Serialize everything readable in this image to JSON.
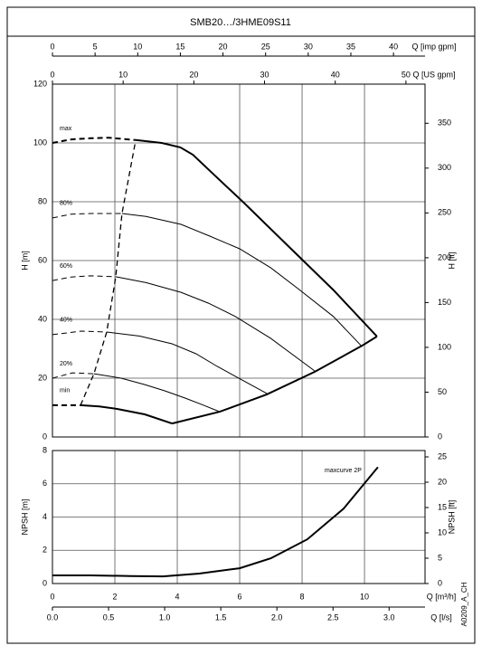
{
  "title": "SMB20…/3HME09S11",
  "code": "A0209_A_CH",
  "chart_data": [
    {
      "type": "line",
      "ylabel": "H [m]",
      "y2label": "H [ft]",
      "ylim": [
        0,
        120
      ],
      "yticks": [
        0,
        20,
        40,
        60,
        80,
        100,
        120
      ],
      "y2lim": [
        0,
        393.7
      ],
      "y2ticks": [
        0,
        50,
        100,
        150,
        200,
        250,
        300,
        350
      ],
      "xlim": [
        0,
        11.94
      ],
      "xticks": [
        0,
        2,
        4,
        6,
        8,
        10
      ],
      "top_axes": [
        {
          "label": "Q [imp gpm]",
          "xlim": [
            0,
            43.7
          ],
          "xticks": [
            0,
            5,
            10,
            15,
            20,
            25,
            30,
            35,
            40
          ]
        },
        {
          "label": "Q [US gpm]",
          "xlim": [
            0,
            52.7
          ],
          "xticks": [
            0,
            10,
            20,
            30,
            40,
            50
          ]
        }
      ],
      "grid": true,
      "color": "#000000",
      "series": [
        {
          "name": "max",
          "x": [
            0,
            0.6,
            1.22,
            1.8,
            2.67
          ],
          "values": [
            100,
            101.2,
            101.6,
            101.8,
            101
          ],
          "width": 2,
          "dash": true
        },
        {
          "x": [
            2.67,
            3.5,
            4.1,
            4.5,
            5.2,
            6.1,
            7.5,
            9,
            10.4
          ],
          "values": [
            101,
            100,
            98.5,
            96,
            89,
            80,
            65.5,
            50,
            34.2
          ],
          "width": 2,
          "dash": false
        },
        {
          "name": "80%",
          "x": [
            0,
            0.6,
            1.22,
            2.23
          ],
          "values": [
            74.5,
            75.8,
            76,
            76
          ],
          "width": 1,
          "dash": true
        },
        {
          "x": [
            2.23,
            3,
            4.12,
            5,
            6,
            7,
            7.9,
            9,
            9.9
          ],
          "values": [
            76,
            75,
            72.3,
            68.5,
            64,
            57.5,
            50.2,
            41,
            31
          ],
          "width": 1,
          "dash": false
        },
        {
          "name": "60%",
          "x": [
            0,
            0.6,
            1.22,
            2.03
          ],
          "values": [
            53.2,
            54.4,
            54.8,
            54.5
          ],
          "width": 1,
          "dash": true
        },
        {
          "x": [
            2.03,
            3,
            4.12,
            5,
            5.86,
            7,
            8.4
          ],
          "values": [
            54.5,
            52.5,
            49.2,
            45.5,
            41,
            33.5,
            22.5
          ],
          "width": 1,
          "dash": false
        },
        {
          "name": "40%",
          "x": [
            0,
            0.93,
            1.74
          ],
          "values": [
            34.8,
            36,
            35.7
          ],
          "width": 1,
          "dash": true
        },
        {
          "x": [
            1.74,
            2.8,
            3.83,
            4.6,
            5.28,
            6,
            6.87
          ],
          "values": [
            35.7,
            34.3,
            31.7,
            28.3,
            24,
            19.8,
            14.8
          ],
          "width": 1,
          "dash": false
        },
        {
          "name": "20%",
          "x": [
            0,
            0.64,
            1.33
          ],
          "values": [
            20,
            21.8,
            21.5
          ],
          "width": 1,
          "dash": true
        },
        {
          "x": [
            1.33,
            2.2,
            2.96,
            3.6,
            4.26,
            4.8,
            5.36
          ],
          "values": [
            21.5,
            20,
            17.8,
            15.7,
            13.2,
            11,
            8.6
          ],
          "width": 1,
          "dash": false
        },
        {
          "name": "min",
          "x": [
            0,
            0.9
          ],
          "values": [
            10.8,
            10.8
          ],
          "width": 2,
          "dash": true
        },
        {
          "x": [
            0.9,
            1.5,
            2.09,
            2.96,
            3.83
          ],
          "values": [
            10.8,
            10.4,
            9.5,
            7.7,
            4.6
          ],
          "width": 2,
          "dash": false
        },
        {
          "x": [
            3.83,
            5.36,
            6.87,
            8.41,
            9.91,
            10.4
          ],
          "values": [
            4.6,
            8.6,
            14.5,
            22.2,
            31,
            34.2
          ],
          "width": 2,
          "dash": false
        },
        {
          "x": [
            0.9,
            1.33,
            1.74,
            2.03,
            2.23,
            2.67
          ],
          "values": [
            10.8,
            21.5,
            35.7,
            54.5,
            76,
            101
          ],
          "width": 1.3,
          "dash": true
        }
      ]
    },
    {
      "type": "line",
      "ylabel": "NPSH [m]",
      "y2label": "NPSH [ft]",
      "ylim": [
        0,
        8
      ],
      "yticks": [
        0,
        2,
        4,
        6,
        8
      ],
      "y2lim": [
        0,
        26.25
      ],
      "y2ticks": [
        0,
        5,
        10,
        15,
        20,
        25
      ],
      "xlim": [
        0,
        11.94
      ],
      "xticks": [
        0,
        2,
        4,
        6,
        8,
        10
      ],
      "xlabel": "Q [m³/h]",
      "x2lim": [
        0,
        3.32
      ],
      "x2ticks": [
        {
          "value": 0,
          "label": "0.0"
        },
        0.5,
        {
          "value": 1,
          "label": "1.0"
        },
        1.5,
        {
          "value": 2,
          "label": "2.0"
        },
        2.5,
        {
          "value": 3,
          "label": "3.0"
        }
      ],
      "x2label": "Q [l/s]",
      "grid": true,
      "color": "#000000",
      "series": [
        {
          "name": "maxcurve 2P",
          "x": [
            0,
            1.22,
            2.5,
            3.54,
            4.7,
            6,
            7,
            8.17,
            9.33,
            10.43
          ],
          "values": [
            0.49,
            0.49,
            0.45,
            0.43,
            0.6,
            0.92,
            1.52,
            2.66,
            4.5,
            7.0
          ],
          "width": 2,
          "dash": false
        }
      ]
    }
  ]
}
